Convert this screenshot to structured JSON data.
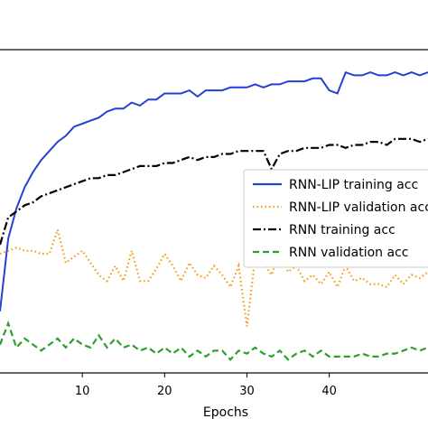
{
  "chart_data": {
    "type": "line",
    "xlabel": "Epochs",
    "ylabel": "",
    "xlim": [
      0,
      52
    ],
    "ylim": [
      0,
      1
    ],
    "x_ticks": [
      10,
      20,
      30,
      40
    ],
    "grid": false,
    "legend_position": "right",
    "series": [
      {
        "name": "RNN-LIP training acc",
        "color": "#2440d6",
        "style": "solid",
        "x": [
          0,
          1,
          2,
          3,
          4,
          5,
          6,
          7,
          8,
          9,
          10,
          11,
          12,
          13,
          14,
          15,
          16,
          17,
          18,
          19,
          20,
          21,
          22,
          23,
          24,
          25,
          26,
          27,
          28,
          29,
          30,
          31,
          32,
          33,
          34,
          35,
          36,
          37,
          38,
          39,
          40,
          41,
          42,
          43,
          44,
          45,
          46,
          47,
          48,
          49,
          50,
          51,
          52
        ],
        "y": [
          0.18,
          0.42,
          0.52,
          0.59,
          0.64,
          0.68,
          0.71,
          0.74,
          0.76,
          0.79,
          0.8,
          0.81,
          0.82,
          0.84,
          0.85,
          0.85,
          0.87,
          0.86,
          0.88,
          0.88,
          0.9,
          0.9,
          0.9,
          0.91,
          0.89,
          0.91,
          0.91,
          0.91,
          0.92,
          0.92,
          0.92,
          0.93,
          0.92,
          0.93,
          0.93,
          0.94,
          0.94,
          0.94,
          0.95,
          0.95,
          0.91,
          0.9,
          0.97,
          0.96,
          0.96,
          0.97,
          0.96,
          0.96,
          0.97,
          0.96,
          0.97,
          0.96,
          0.97
        ]
      },
      {
        "name": "RNN-LIP validation acc",
        "color": "#f39c12",
        "style": "dotted",
        "x": [
          0,
          1,
          2,
          3,
          4,
          5,
          6,
          7,
          8,
          9,
          10,
          11,
          12,
          13,
          14,
          15,
          16,
          17,
          18,
          19,
          20,
          21,
          22,
          23,
          24,
          25,
          26,
          27,
          28,
          29,
          30,
          31,
          32,
          33,
          34,
          35,
          36,
          37,
          38,
          39,
          40,
          41,
          42,
          43,
          44,
          45,
          46,
          47,
          48,
          49,
          50,
          51,
          52
        ],
        "y": [
          0.37,
          0.38,
          0.39,
          0.38,
          0.38,
          0.37,
          0.37,
          0.45,
          0.34,
          0.36,
          0.38,
          0.34,
          0.3,
          0.28,
          0.33,
          0.28,
          0.38,
          0.28,
          0.28,
          0.32,
          0.37,
          0.33,
          0.28,
          0.34,
          0.3,
          0.29,
          0.33,
          0.3,
          0.26,
          0.33,
          0.13,
          0.36,
          0.34,
          0.3,
          0.38,
          0.31,
          0.33,
          0.28,
          0.3,
          0.27,
          0.31,
          0.26,
          0.33,
          0.28,
          0.29,
          0.27,
          0.27,
          0.26,
          0.3,
          0.27,
          0.3,
          0.29,
          0.31
        ]
      },
      {
        "name": "RNN training acc",
        "color": "#000000",
        "style": "dashdot",
        "x": [
          0,
          1,
          2,
          3,
          4,
          5,
          6,
          7,
          8,
          9,
          10,
          11,
          12,
          13,
          14,
          15,
          16,
          17,
          18,
          19,
          20,
          21,
          22,
          23,
          24,
          25,
          26,
          27,
          28,
          29,
          30,
          31,
          32,
          33,
          34,
          35,
          36,
          37,
          38,
          39,
          40,
          41,
          42,
          43,
          44,
          45,
          46,
          47,
          48,
          49,
          50,
          51,
          52
        ],
        "y": [
          0.4,
          0.49,
          0.51,
          0.53,
          0.54,
          0.56,
          0.57,
          0.58,
          0.59,
          0.6,
          0.61,
          0.62,
          0.62,
          0.63,
          0.63,
          0.64,
          0.65,
          0.66,
          0.66,
          0.66,
          0.67,
          0.67,
          0.68,
          0.69,
          0.68,
          0.69,
          0.69,
          0.7,
          0.7,
          0.71,
          0.71,
          0.71,
          0.71,
          0.65,
          0.7,
          0.71,
          0.71,
          0.72,
          0.72,
          0.72,
          0.73,
          0.73,
          0.72,
          0.73,
          0.73,
          0.74,
          0.74,
          0.73,
          0.75,
          0.75,
          0.75,
          0.74,
          0.75
        ]
      },
      {
        "name": "RNN validation acc",
        "color": "#2ca02c",
        "style": "dashed",
        "x": [
          0,
          1,
          2,
          3,
          4,
          5,
          6,
          7,
          8,
          9,
          10,
          11,
          12,
          13,
          14,
          15,
          16,
          17,
          18,
          19,
          20,
          21,
          22,
          23,
          24,
          25,
          26,
          27,
          28,
          29,
          30,
          31,
          32,
          33,
          34,
          35,
          36,
          37,
          38,
          39,
          40,
          41,
          42,
          43,
          44,
          45,
          46,
          47,
          48,
          49,
          50,
          51,
          52
        ],
        "y": [
          0.07,
          0.14,
          0.06,
          0.09,
          0.07,
          0.05,
          0.07,
          0.09,
          0.06,
          0.09,
          0.07,
          0.06,
          0.1,
          0.06,
          0.09,
          0.06,
          0.07,
          0.05,
          0.06,
          0.04,
          0.06,
          0.04,
          0.06,
          0.03,
          0.05,
          0.03,
          0.05,
          0.05,
          0.02,
          0.05,
          0.04,
          0.06,
          0.04,
          0.03,
          0.05,
          0.02,
          0.04,
          0.05,
          0.03,
          0.05,
          0.03,
          0.03,
          0.03,
          0.03,
          0.04,
          0.03,
          0.03,
          0.04,
          0.04,
          0.05,
          0.06,
          0.05,
          0.06
        ]
      }
    ]
  }
}
